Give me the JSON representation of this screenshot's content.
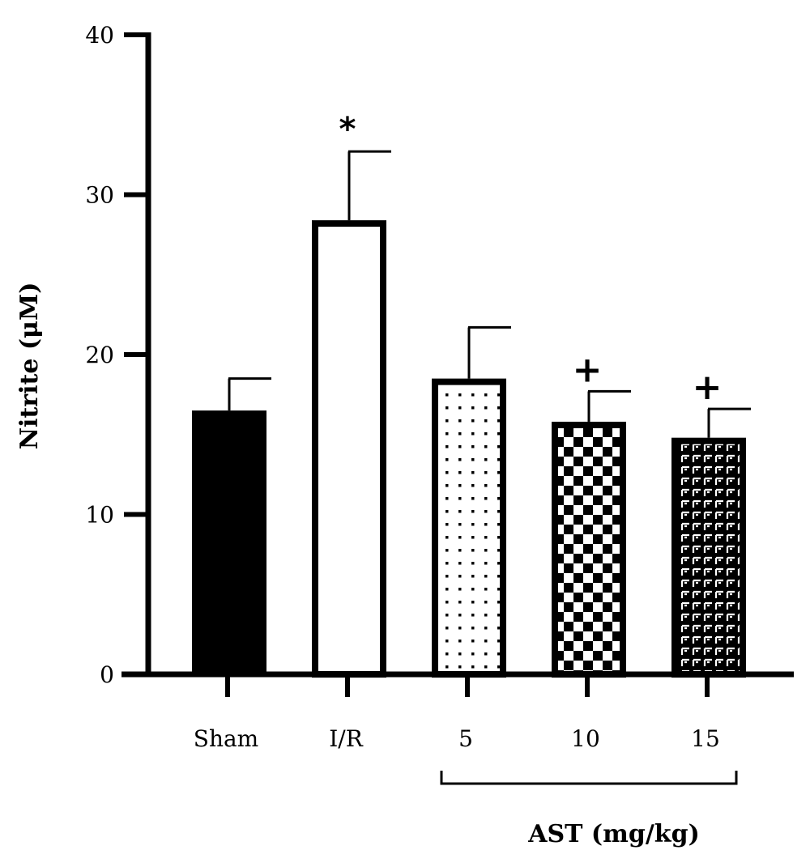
{
  "chart_data": {
    "type": "bar",
    "categories": [
      "Sham",
      "I/R",
      "5",
      "10",
      "15"
    ],
    "values": [
      16.5,
      28.4,
      18.5,
      15.8,
      14.8
    ],
    "errors": [
      2.0,
      4.3,
      3.2,
      1.9,
      1.8
    ],
    "annotations": [
      "",
      "*",
      "",
      "+",
      "+"
    ],
    "fills": [
      "solid",
      "open",
      "dots",
      "checker",
      "brick"
    ],
    "ylabel": "Nitrite (μM)",
    "group_label": "AST (mg/kg)",
    "group_categories": [
      "5",
      "10",
      "15"
    ],
    "ylim": [
      0,
      40
    ],
    "yticks": [
      "0",
      "10",
      "20",
      "30",
      "40"
    ],
    "grid": false,
    "colors": {
      "ink": "#000000",
      "background": "#ffffff"
    }
  }
}
